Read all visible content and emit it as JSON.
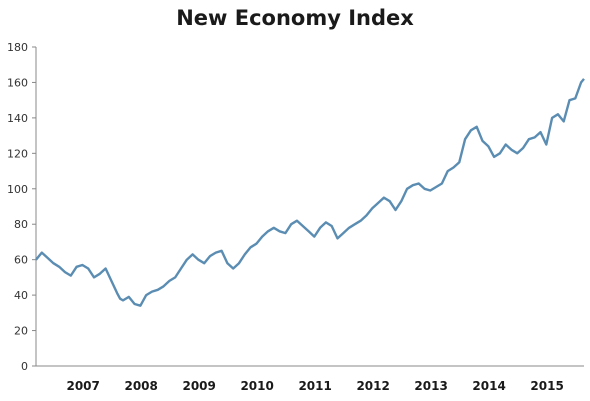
{
  "chart_data": {
    "type": "line",
    "title": "New Economy Index",
    "xlabel": "",
    "ylabel": "",
    "ylim": [
      0,
      180
    ],
    "yticks": [
      0,
      20,
      40,
      60,
      80,
      100,
      120,
      140,
      160,
      180
    ],
    "xlim": [
      2006.6,
      2016.05
    ],
    "xtick_labels": [
      "2007",
      "2008",
      "2009",
      "2010",
      "2011",
      "2012",
      "2013",
      "2014",
      "2015"
    ],
    "xtick_positions": [
      2007.0,
      2008.0,
      2009.0,
      2010.0,
      2011.0,
      2012.0,
      2013.0,
      2014.0,
      2015.0
    ],
    "grid": false,
    "legend": "none",
    "line_color": "#5b8db3",
    "series": [
      {
        "x": [
          2006.6,
          2006.7,
          2006.8,
          2006.9,
          2007.0,
          2007.1,
          2007.2,
          2007.3,
          2007.4,
          2007.5,
          2007.6,
          2007.7,
          2007.8,
          2007.9,
          2008.0,
          2008.05,
          2008.1,
          2008.2,
          2008.3,
          2008.4,
          2008.5,
          2008.6,
          2008.7,
          2008.8,
          2008.9,
          2009.0,
          2009.1,
          2009.2,
          2009.3,
          2009.4,
          2009.5,
          2009.6,
          2009.7,
          2009.8,
          2009.9,
          2010.0,
          2010.1,
          2010.2,
          2010.3,
          2010.4,
          2010.5,
          2010.6,
          2010.7,
          2010.8,
          2010.9,
          2011.0,
          2011.1,
          2011.2,
          2011.3,
          2011.4,
          2011.5,
          2011.6,
          2011.7,
          2011.8,
          2011.9,
          2012.0,
          2012.1,
          2012.2,
          2012.3,
          2012.4,
          2012.5,
          2012.6,
          2012.7,
          2012.8,
          2012.9,
          2013.0,
          2013.1,
          2013.2,
          2013.3,
          2013.4,
          2013.5,
          2013.6,
          2013.7,
          2013.8,
          2013.9,
          2014.0,
          2014.1,
          2014.2,
          2014.3,
          2014.4,
          2014.5,
          2014.6,
          2014.7,
          2014.8,
          2014.9,
          2015.0,
          2015.1,
          2015.2,
          2015.3,
          2015.4,
          2015.5,
          2015.6,
          2015.7,
          2015.8,
          2015.9,
          2016.0,
          2016.05
        ],
        "y": [
          60,
          64,
          61,
          58,
          56,
          53,
          51,
          56,
          57,
          55,
          50,
          52,
          55,
          48,
          41,
          38,
          37,
          39,
          35,
          34,
          40,
          42,
          43,
          45,
          48,
          50,
          55,
          60,
          63,
          60,
          58,
          62,
          64,
          65,
          58,
          55,
          58,
          63,
          67,
          69,
          73,
          76,
          78,
          76,
          75,
          80,
          82,
          79,
          76,
          73,
          78,
          81,
          79,
          72,
          75,
          78,
          80,
          82,
          85,
          89,
          92,
          95,
          93,
          88,
          93,
          100,
          102,
          103,
          100,
          99,
          101,
          103,
          110,
          112,
          115,
          128,
          133,
          135,
          127,
          124,
          118,
          120,
          125,
          122,
          120,
          123,
          128,
          129,
          132,
          125,
          140,
          142,
          138,
          150,
          151,
          160,
          162
        ]
      }
    ]
  }
}
